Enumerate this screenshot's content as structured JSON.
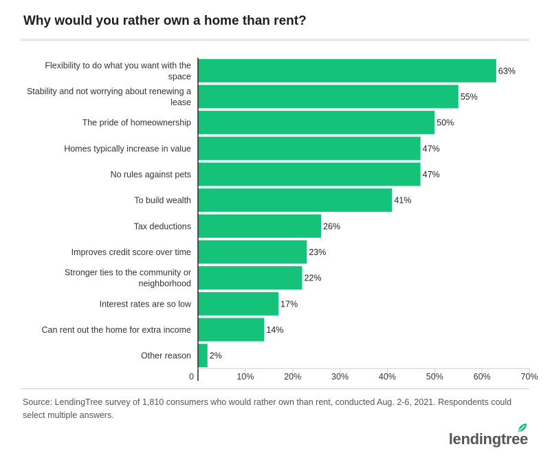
{
  "title": "Why would you rather own a home than rent?",
  "source": "Source: LendingTree survey of 1,810 consumers who would rather own than rent, conducted Aug. 2-6, 2021. Respondents could select multiple answers.",
  "brand": "lendingtree",
  "colors": {
    "bar": "#14c27a",
    "axis": "#222222",
    "grid": "#cccccc"
  },
  "chart_data": {
    "type": "bar",
    "orientation": "horizontal",
    "title": "Why would you rather own a home than rent?",
    "categories": [
      [
        "Flexibility to do what you want with the",
        "space"
      ],
      [
        "Stability and not worrying about renewing a",
        "lease"
      ],
      [
        "The pride of homeownership"
      ],
      [
        "Homes typically increase in value"
      ],
      [
        "No rules against pets"
      ],
      [
        "To build wealth"
      ],
      [
        "Tax deductions"
      ],
      [
        "Improves credit score over time"
      ],
      [
        "Stronger ties to the community or",
        "neighborhood"
      ],
      [
        "Interest rates are so low"
      ],
      [
        "Can rent out the home for extra income"
      ],
      [
        "Other reason"
      ]
    ],
    "values": [
      63,
      55,
      50,
      47,
      47,
      41,
      26,
      23,
      22,
      17,
      14,
      2
    ],
    "value_labels": [
      "63%",
      "55%",
      "50%",
      "47%",
      "47%",
      "41%",
      "26%",
      "23%",
      "22%",
      "17%",
      "14%",
      "2%"
    ],
    "xlim": [
      0,
      70
    ],
    "xticks": [
      0,
      10,
      20,
      30,
      40,
      50,
      60,
      70
    ],
    "xtick_labels": [
      "0",
      "10%",
      "20%",
      "30%",
      "40%",
      "50%",
      "60%",
      "70%"
    ],
    "grid": true
  }
}
